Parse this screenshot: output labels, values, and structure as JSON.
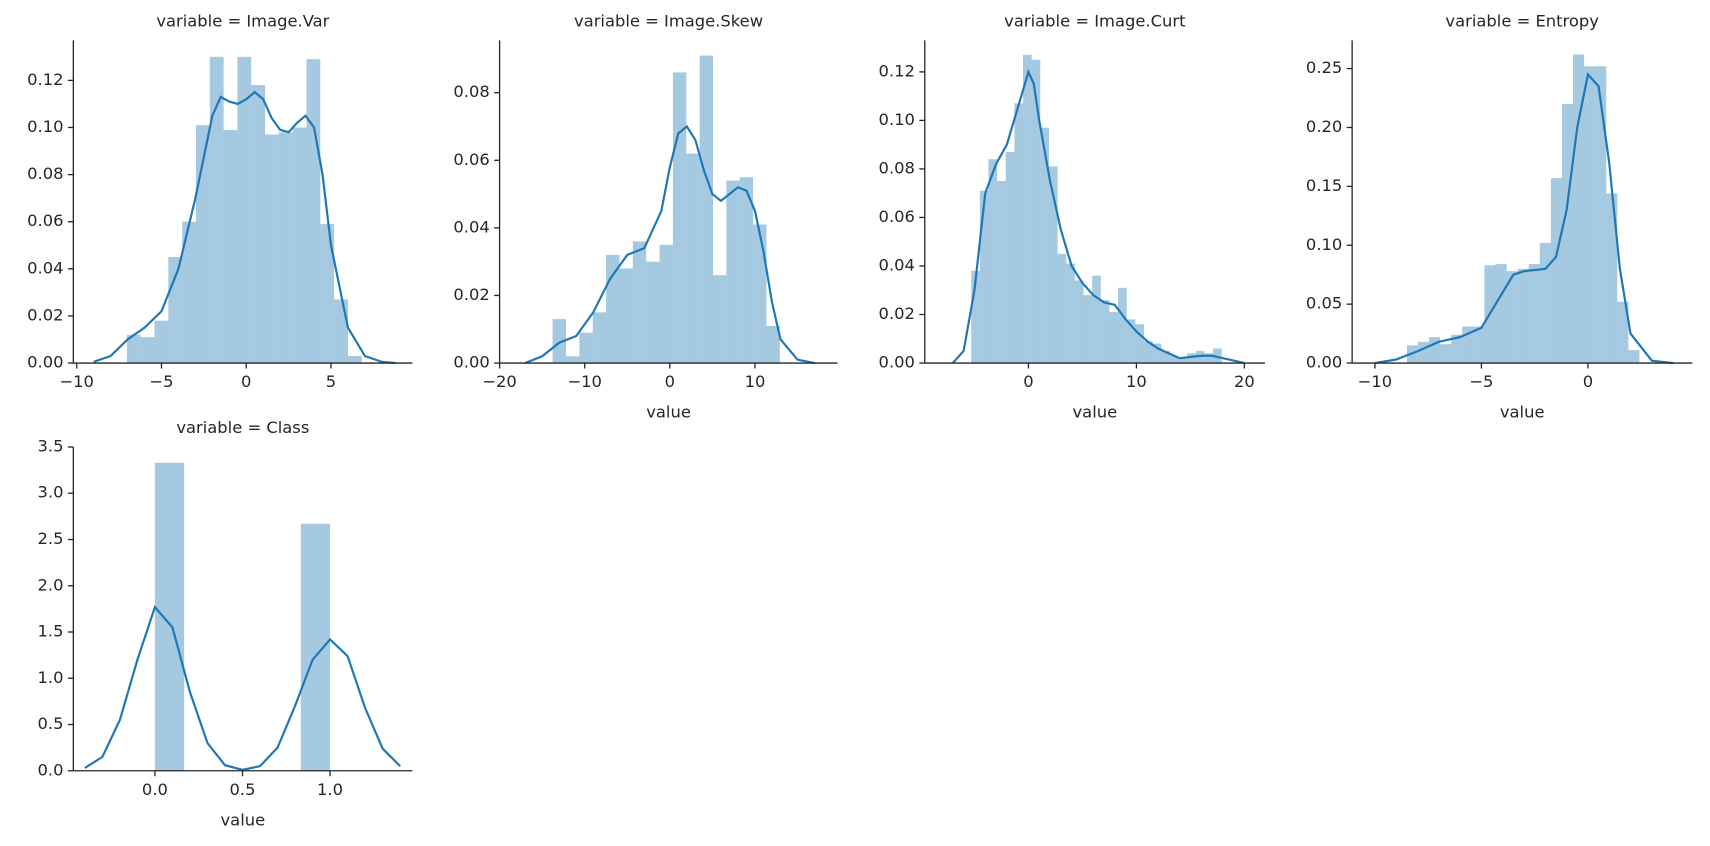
{
  "chart_data": [
    {
      "type": "histogram",
      "title": "variable = Image.Var",
      "color": "#1f77b4",
      "bins": [
        -7.04,
        -6.225,
        -5.41,
        -4.595,
        -3.78,
        -2.965,
        -2.15,
        -1.335,
        -0.52,
        0.295,
        1.11,
        1.925,
        2.74,
        3.555,
        4.37,
        5.185,
        6.0,
        6.815
      ],
      "values": [
        0.012,
        0.011,
        0.018,
        0.045,
        0.06,
        0.101,
        0.13,
        0.099,
        0.13,
        0.118,
        0.097,
        0.098,
        0.1,
        0.129,
        0.059,
        0.027,
        0.003
      ],
      "line": {
        "x": [
          -9,
          -8,
          -7,
          -6,
          -5,
          -4,
          -3,
          -2,
          -1.5,
          -1,
          -0.5,
          0,
          0.5,
          1,
          1.5,
          2,
          2.5,
          3,
          3.5,
          4,
          4.5,
          5,
          6,
          7,
          8,
          8.8
        ],
        "y": [
          0.0005,
          0.003,
          0.01,
          0.015,
          0.022,
          0.04,
          0.07,
          0.105,
          0.113,
          0.111,
          0.11,
          0.112,
          0.115,
          0.112,
          0.104,
          0.099,
          0.098,
          0.102,
          0.105,
          0.1,
          0.08,
          0.05,
          0.015,
          0.003,
          0.0005,
          0
        ]
      },
      "xlim": [
        -10.2,
        9.8
      ],
      "ylim": [
        0,
        0.137
      ],
      "xticks": [
        {
          "value": -10,
          "label": "−10"
        },
        {
          "value": -5,
          "label": "−5"
        },
        0,
        5
      ],
      "yticks": [
        {
          "value": 0,
          "label": "0.00"
        },
        {
          "value": 0.02,
          "label": "0.02"
        },
        {
          "value": 0.04,
          "label": "0.04"
        },
        {
          "value": 0.06,
          "label": "0.06"
        },
        {
          "value": 0.08,
          "label": "0.08"
        },
        {
          "value": 0.1,
          "label": "0.10"
        },
        {
          "value": 0.12,
          "label": "0.12"
        }
      ]
    },
    {
      "type": "histogram",
      "title": "variable = Image.Skew",
      "xlabel": "value",
      "color": "#1f77b4",
      "bins": [
        -13.77,
        -12.2,
        -10.63,
        -9.06,
        -7.49,
        -5.92,
        -4.35,
        -2.78,
        -1.21,
        0.36,
        1.93,
        3.5,
        5.07,
        6.64,
        8.21,
        9.78,
        11.35,
        12.92
      ],
      "values": [
        0.013,
        0.002,
        0.009,
        0.015,
        0.032,
        0.028,
        0.036,
        0.03,
        0.035,
        0.086,
        0.062,
        0.091,
        0.026,
        0.054,
        0.055,
        0.041,
        0.011
      ],
      "line": {
        "x": [
          -17,
          -15,
          -13,
          -11,
          -9,
          -7,
          -5,
          -3,
          -1,
          0,
          1,
          2,
          3,
          4,
          5,
          6,
          7,
          8,
          9,
          10,
          11,
          12,
          13,
          15,
          17
        ],
        "y": [
          0,
          0.002,
          0.006,
          0.008,
          0.015,
          0.025,
          0.032,
          0.034,
          0.045,
          0.058,
          0.068,
          0.07,
          0.066,
          0.057,
          0.05,
          0.048,
          0.05,
          0.052,
          0.051,
          0.045,
          0.033,
          0.018,
          0.007,
          0.001,
          0
        ]
      },
      "xlim": [
        -20,
        19.7
      ],
      "ylim": [
        0,
        0.0955
      ],
      "xticks": [
        {
          "value": -20,
          "label": "−20"
        },
        {
          "value": -10,
          "label": "−10"
        },
        0,
        10
      ],
      "yticks": [
        {
          "value": 0,
          "label": "0.00"
        },
        {
          "value": 0.02,
          "label": "0.02"
        },
        {
          "value": 0.04,
          "label": "0.04"
        },
        {
          "value": 0.06,
          "label": "0.06"
        },
        {
          "value": 0.08,
          "label": "0.08"
        }
      ]
    },
    {
      "type": "histogram",
      "title": "variable = Image.Curt",
      "xlabel": "value",
      "color": "#1f77b4",
      "bins": [
        -5.3,
        -4.5,
        -3.7,
        -2.9,
        -2.1,
        -1.3,
        -0.5,
        0.3,
        1.1,
        1.9,
        2.7,
        3.5,
        4.3,
        5.1,
        5.9,
        6.7,
        7.5,
        8.3,
        9.1,
        9.9,
        10.7,
        11.5,
        12.3,
        13.1,
        13.9,
        14.7,
        15.5,
        16.3,
        17.1,
        17.9
      ],
      "values": [
        0.038,
        0.071,
        0.084,
        0.075,
        0.087,
        0.107,
        0.127,
        0.125,
        0.097,
        0.081,
        0.045,
        0.041,
        0.034,
        0.028,
        0.036,
        0.026,
        0.021,
        0.031,
        0.018,
        0.016,
        0.009,
        0.008,
        0.005,
        0.003,
        0.002,
        0.004,
        0.005,
        0.004,
        0.006
      ],
      "line": {
        "x": [
          -7,
          -6,
          -5,
          -4,
          -3,
          -2,
          -1,
          0,
          0.5,
          1,
          2,
          3,
          4,
          5,
          6,
          7,
          8,
          9,
          10,
          11,
          12,
          13,
          14,
          16,
          17,
          18,
          19,
          20
        ],
        "y": [
          0,
          0.005,
          0.03,
          0.07,
          0.082,
          0.09,
          0.105,
          0.12,
          0.115,
          0.1,
          0.075,
          0.055,
          0.04,
          0.033,
          0.028,
          0.025,
          0.024,
          0.018,
          0.013,
          0.009,
          0.006,
          0.004,
          0.002,
          0.003,
          0.003,
          0.002,
          0.001,
          0
        ]
      },
      "xlim": [
        -9.6,
        21.9
      ],
      "ylim": [
        0,
        0.133
      ],
      "xticks": [
        0,
        10,
        20
      ],
      "yticks": [
        {
          "value": 0,
          "label": "0.00"
        },
        {
          "value": 0.02,
          "label": "0.02"
        },
        {
          "value": 0.04,
          "label": "0.04"
        },
        {
          "value": 0.06,
          "label": "0.06"
        },
        {
          "value": 0.08,
          "label": "0.08"
        },
        {
          "value": 0.1,
          "label": "0.10"
        },
        {
          "value": 0.12,
          "label": "0.12"
        }
      ]
    },
    {
      "type": "histogram",
      "title": "variable = Entropy",
      "xlabel": "value",
      "color": "#1f77b4",
      "bins": [
        -8.5,
        -7.98,
        -7.46,
        -6.94,
        -6.42,
        -5.9,
        -5.38,
        -4.86,
        -4.34,
        -3.82,
        -3.3,
        -2.78,
        -2.26,
        -1.74,
        -1.22,
        -0.7,
        -0.18,
        0.34,
        0.86,
        1.38,
        1.9,
        2.42
      ],
      "values": [
        0.015,
        0.018,
        0.022,
        0.016,
        0.024,
        0.031,
        0.031,
        0.083,
        0.084,
        0.078,
        0.08,
        0.084,
        0.102,
        0.157,
        0.22,
        0.262,
        0.252,
        0.252,
        0.144,
        0.052,
        0.011
      ],
      "line": {
        "x": [
          -10,
          -9,
          -8,
          -7,
          -6,
          -5,
          -4,
          -3.5,
          -3,
          -2,
          -1.5,
          -1,
          -0.5,
          0,
          0.5,
          1,
          1.5,
          2,
          3,
          4
        ],
        "y": [
          0,
          0.003,
          0.01,
          0.018,
          0.022,
          0.03,
          0.06,
          0.075,
          0.078,
          0.08,
          0.09,
          0.13,
          0.2,
          0.245,
          0.235,
          0.17,
          0.08,
          0.025,
          0.002,
          0
        ]
      },
      "xlim": [
        -11.07,
        4.9
      ],
      "ylim": [
        0,
        0.274
      ],
      "xticks": [
        {
          "value": -10,
          "label": "−10"
        },
        {
          "value": -5,
          "label": "−5"
        },
        0
      ],
      "yticks": [
        {
          "value": 0,
          "label": "0.00"
        },
        {
          "value": 0.05,
          "label": "0.05"
        },
        {
          "value": 0.1,
          "label": "0.10"
        },
        {
          "value": 0.15,
          "label": "0.15"
        },
        {
          "value": 0.2,
          "label": "0.20"
        },
        {
          "value": 0.25,
          "label": "0.25"
        }
      ]
    },
    {
      "type": "histogram",
      "title": "variable = Class",
      "xlabel": "value",
      "color": "#1f77b4",
      "bins": [
        0,
        0.167,
        0.333,
        0.5,
        0.667,
        0.833,
        1.0
      ],
      "values": [
        3.33,
        0,
        0,
        0,
        0,
        2.67
      ],
      "line": {
        "x": [
          -0.4,
          -0.3,
          -0.2,
          -0.1,
          0,
          0.1,
          0.2,
          0.3,
          0.4,
          0.5,
          0.6,
          0.7,
          0.8,
          0.9,
          1.0,
          1.1,
          1.2,
          1.3,
          1.4
        ],
        "y": [
          0.03,
          0.15,
          0.55,
          1.2,
          1.77,
          1.55,
          0.85,
          0.3,
          0.06,
          0.01,
          0.05,
          0.25,
          0.7,
          1.2,
          1.42,
          1.24,
          0.68,
          0.24,
          0.05
        ]
      },
      "xlim": [
        -0.466,
        1.47
      ],
      "ylim": [
        0,
        3.5
      ],
      "xticks": [
        {
          "value": 0,
          "label": "0.0"
        },
        {
          "value": 0.5,
          "label": "0.5"
        },
        {
          "value": 1,
          "label": "1.0"
        }
      ],
      "yticks": [
        {
          "value": 0,
          "label": "0.0"
        },
        {
          "value": 0.5,
          "label": "0.5"
        },
        {
          "value": 1,
          "label": "1.0"
        },
        {
          "value": 1.5,
          "label": "1.5"
        },
        {
          "value": 2,
          "label": "2.0"
        },
        {
          "value": 2.5,
          "label": "2.5"
        },
        {
          "value": 3,
          "label": "3.0"
        },
        {
          "value": 3.5,
          "label": "3.5"
        }
      ]
    }
  ]
}
